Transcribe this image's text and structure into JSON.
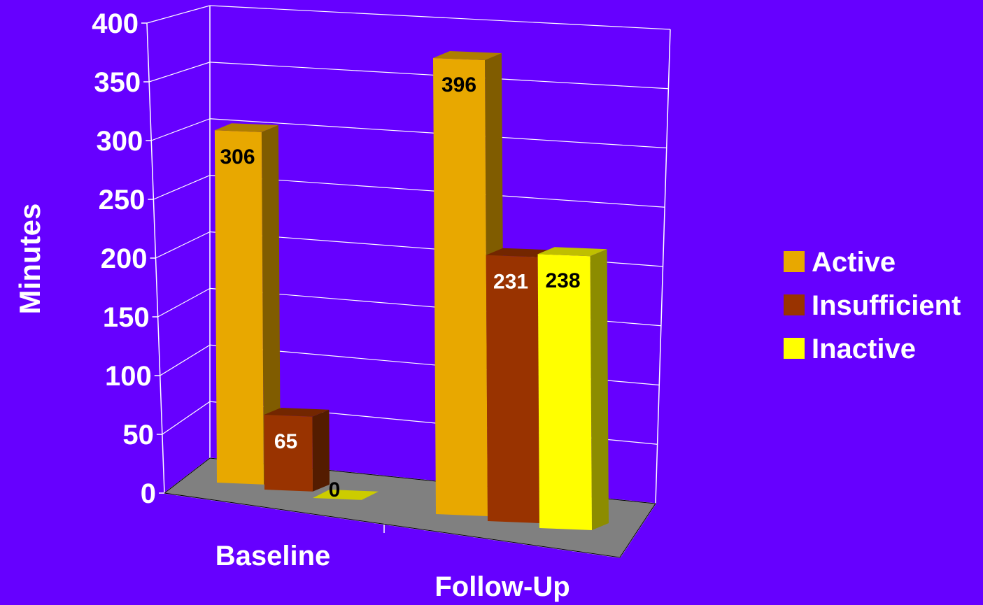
{
  "chart_data": {
    "type": "bar",
    "categories": [
      "Baseline",
      "Follow-Up"
    ],
    "series": [
      {
        "name": "Active",
        "values": [
          306,
          396
        ],
        "color": "#e8a800"
      },
      {
        "name": "Insufficient",
        "values": [
          65,
          231
        ],
        "color": "#993300"
      },
      {
        "name": "Inactive",
        "values": [
          0,
          238
        ],
        "color": "#ffff00"
      }
    ],
    "title": "",
    "xlabel": "",
    "ylabel": "Minutes",
    "ylim": [
      0,
      400
    ],
    "yticks": [
      "0",
      "50",
      "100",
      "150",
      "200",
      "250",
      "300",
      "350",
      "400"
    ],
    "data_labels": [
      [
        "306",
        "65",
        "0"
      ],
      [
        "396",
        "231",
        "238"
      ]
    ],
    "grid": true,
    "legend_position": "right",
    "style": "3d"
  },
  "colors": {
    "background": "#6600ff",
    "floor": "#808080",
    "grid_line": "#ffffff",
    "label_dark": "#000000",
    "label_light": "#ffffff"
  }
}
